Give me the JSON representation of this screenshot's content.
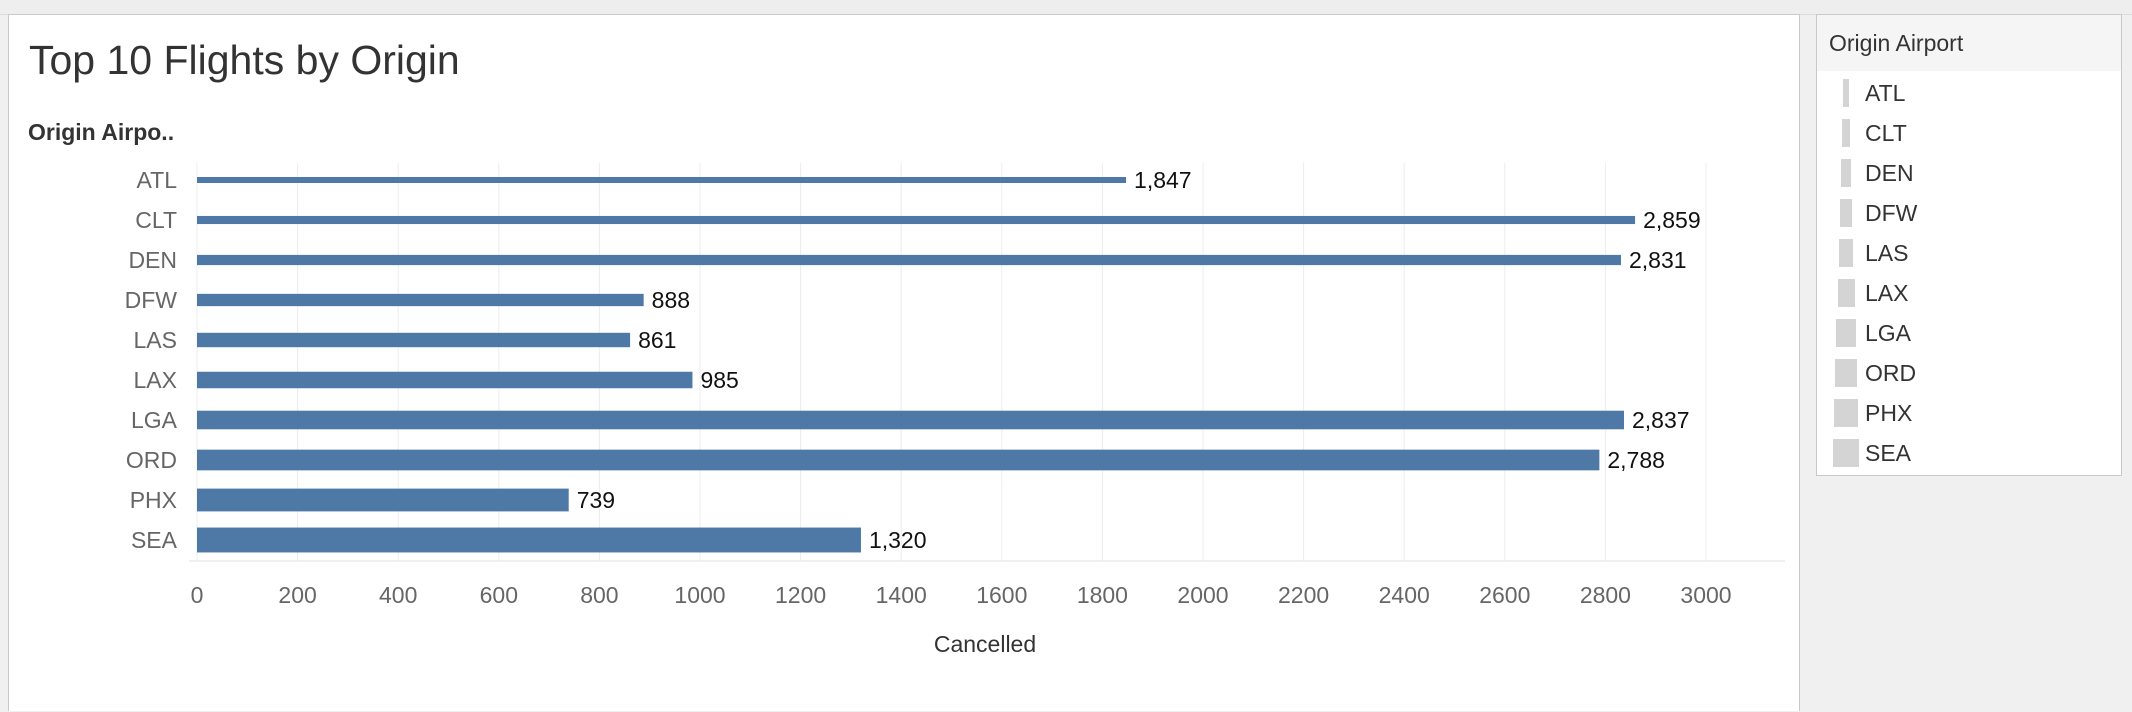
{
  "title": "Top 10 Flights by Origin",
  "legend": {
    "title": "Origin Airport",
    "items": [
      "ATL",
      "CLT",
      "DEN",
      "DFW",
      "LAS",
      "LAX",
      "LGA",
      "ORD",
      "PHX",
      "SEA"
    ]
  },
  "colors": {
    "bar": "#4e79a7",
    "legend_swatch": "#d4d4d4",
    "grid": "#ececec"
  },
  "chart_data": {
    "type": "bar",
    "orientation": "horizontal",
    "title": "Top 10 Flights by Origin",
    "ylabel": "Origin Airpo..",
    "xlabel": "Cancelled",
    "categories": [
      "ATL",
      "CLT",
      "DEN",
      "DFW",
      "LAS",
      "LAX",
      "LGA",
      "ORD",
      "PHX",
      "SEA"
    ],
    "values": [
      1847,
      2859,
      2831,
      888,
      861,
      985,
      2837,
      2788,
      739,
      1320
    ],
    "value_labels": [
      "1,847",
      "2,859",
      "2,831",
      "888",
      "861",
      "985",
      "2,837",
      "2,788",
      "739",
      "1,320"
    ],
    "xlim": [
      0,
      3000
    ],
    "xticks": [
      0,
      200,
      400,
      600,
      800,
      1000,
      1200,
      1400,
      1600,
      1800,
      2000,
      2200,
      2400,
      2600,
      2800,
      3000
    ],
    "grid": true,
    "bar_size_encodes": "Origin Airport"
  }
}
